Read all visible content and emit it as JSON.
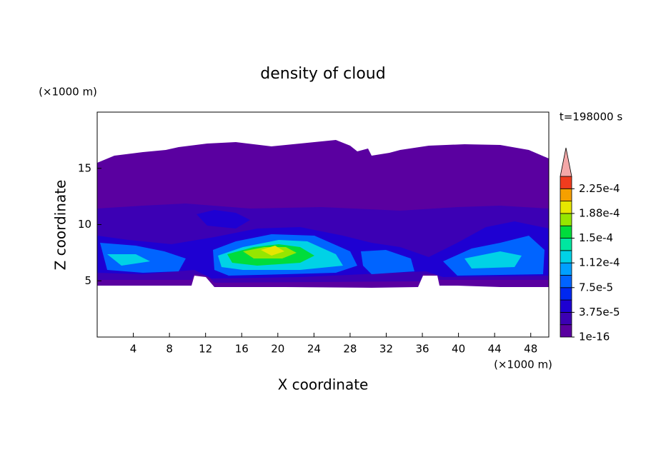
{
  "chart_data": {
    "type": "contourf",
    "title": "density of cloud",
    "time_label": "t=198000 s",
    "xlabel": "X coordinate",
    "ylabel": "Z coordinate",
    "x_unit": "(×1000 m)",
    "y_unit": "(×1000 m)",
    "xlim": [
      0,
      50
    ],
    "ylim": [
      0,
      20
    ],
    "xticks": [
      4,
      8,
      12,
      16,
      20,
      24,
      28,
      32,
      36,
      40,
      44,
      48
    ],
    "yticks": [
      5,
      10,
      15
    ],
    "colorbar": {
      "lim": [
        1e-16,
        0.00024375
      ],
      "ticks": [
        {
          "value": 1e-16,
          "label": "1e-16"
        },
        {
          "value": 3.75e-05,
          "label": "3.75e-5"
        },
        {
          "value": 7.5e-05,
          "label": "7.5e-5"
        },
        {
          "value": 0.0001125,
          "label": "1.12e-4"
        },
        {
          "value": 0.00015,
          "label": "1.5e-4"
        },
        {
          "value": 0.0001875,
          "label": "1.88e-4"
        },
        {
          "value": 0.000225,
          "label": "2.25e-4"
        }
      ],
      "colors": [
        "#5a00a0",
        "#3c00b4",
        "#1e00d2",
        "#0028f0",
        "#0064ff",
        "#00a0ff",
        "#00d2e6",
        "#00e6a0",
        "#00dc3c",
        "#96e600",
        "#e6e600",
        "#f5a000",
        "#f03c1e"
      ],
      "extend_color": "#f4a8a8"
    }
  }
}
